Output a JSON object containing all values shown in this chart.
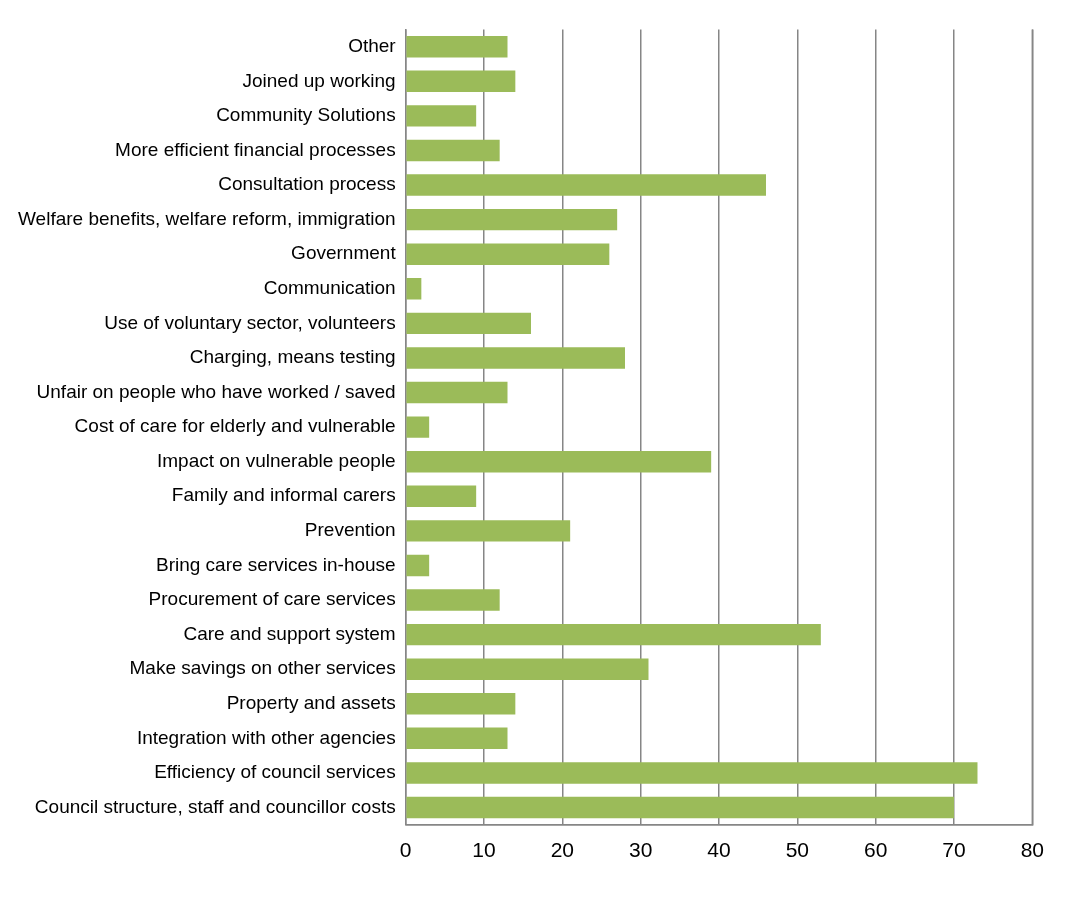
{
  "chart_data": {
    "type": "bar",
    "orientation": "horizontal",
    "categories": [
      "Other",
      "Joined up working",
      "Community Solutions",
      "More efficient financial processes",
      "Consultation process",
      "Welfare benefits, welfare reform, immigration",
      "Government",
      "Communication",
      "Use of voluntary sector, volunteers",
      "Charging, means testing",
      "Unfair on people who have worked / saved",
      "Cost of care for elderly and vulnerable",
      "Impact on vulnerable people",
      "Family and informal carers",
      "Prevention",
      "Bring care services in-house",
      "Procurement of care services",
      "Care and support system",
      "Make savings on other services",
      "Property and assets",
      "Integration with other agencies",
      "Efficiency of council services",
      "Council structure, staff and councillor costs"
    ],
    "values": [
      13,
      14,
      9,
      12,
      46,
      27,
      26,
      2,
      16,
      28,
      13,
      3,
      39,
      9,
      21,
      3,
      12,
      53,
      31,
      14,
      13,
      73,
      70
    ],
    "color": "#9bbb59",
    "xlim": [
      0,
      80
    ],
    "xticks": [
      0,
      10,
      20,
      30,
      40,
      50,
      60,
      70,
      80
    ],
    "grid": "x",
    "legend": false
  }
}
